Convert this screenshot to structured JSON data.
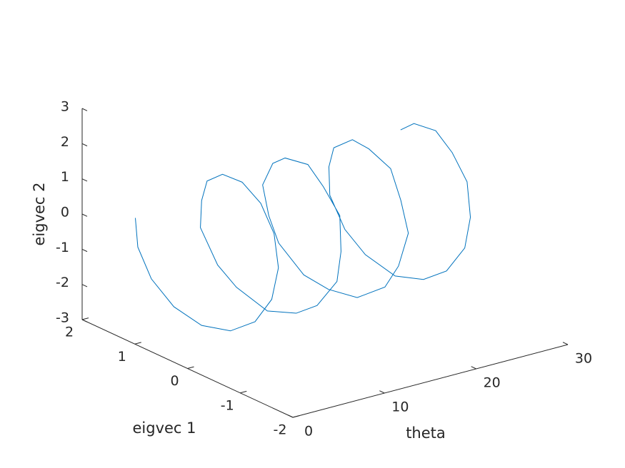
{
  "chart_data": {
    "type": "line3d",
    "xlabel": "theta",
    "ylabel": "eigvec 1",
    "zlabel": "eigvec 2",
    "xlim": [
      0,
      30
    ],
    "ylim": [
      -2,
      2
    ],
    "zlim": [
      -3,
      3
    ],
    "xticks": [
      0,
      10,
      20,
      30
    ],
    "yticks": [
      -2,
      -1,
      0,
      1,
      2
    ],
    "zticks": [
      -3,
      -2,
      -1,
      0,
      1,
      2,
      3
    ],
    "color": "#0072bd",
    "x": [
      0,
      0.5,
      1,
      1.5,
      2,
      2.5,
      3,
      3.5,
      4,
      4.5,
      5,
      5.5,
      6,
      6.5,
      7,
      7.5,
      8,
      8.5,
      9,
      9.5,
      10,
      10.5,
      11,
      11.5,
      12,
      12.5,
      13,
      13.5,
      14,
      14.5,
      15,
      15.5,
      16,
      16.5,
      17,
      17.5,
      18,
      18.5,
      19,
      19.5,
      20,
      20.5,
      21,
      21.5,
      22,
      22.5,
      23,
      23.5,
      24,
      24.5,
      25,
      25.5,
      26,
      26.5,
      27,
      27.5
    ],
    "y": [
      0.99,
      1.03,
      0.86,
      0.52,
      0.08,
      -0.38,
      -0.76,
      -0.99,
      -1.03,
      -0.86,
      -0.52,
      -0.08,
      0.38,
      0.76,
      0.95,
      1.06,
      0.82,
      0.55,
      0.05,
      -0.41,
      -0.72,
      -1.01,
      -1.0,
      -0.89,
      -0.49,
      -0.11,
      0.41,
      0.73,
      1.01,
      0.98,
      0.88,
      0.49,
      0.11,
      -0.35,
      -0.79,
      -0.96,
      -1.06,
      -0.83,
      -0.55,
      -0.05,
      0.35,
      0.79,
      0.97,
      1.04,
      0.84,
      0.54,
      0.06,
      -0.39,
      -0.74,
      -1.0,
      -1.02,
      -0.87,
      -0.5,
      -0.1,
      0.4,
      0.74
    ],
    "z": [
      0.59,
      -0.3,
      -1.12,
      -1.71,
      -1.97,
      -1.84,
      -1.35,
      -0.59,
      0.3,
      1.12,
      1.71,
      1.97,
      1.84,
      1.35,
      0.63,
      -0.25,
      -1.18,
      -1.66,
      -2.02,
      -1.8,
      -1.4,
      -0.55,
      0.26,
      1.17,
      1.68,
      2.01,
      1.8,
      1.39,
      0.55,
      -0.34,
      -1.08,
      -1.75,
      -1.93,
      -1.88,
      -1.31,
      -0.63,
      0.34,
      1.08,
      1.75,
      1.93,
      1.88,
      1.31,
      0.61,
      -0.28,
      -1.15,
      -1.69,
      -2.0,
      -1.82,
      -1.37,
      -0.57,
      0.28,
      1.15,
      1.69,
      2.0,
      1.82,
      1.37
    ]
  }
}
